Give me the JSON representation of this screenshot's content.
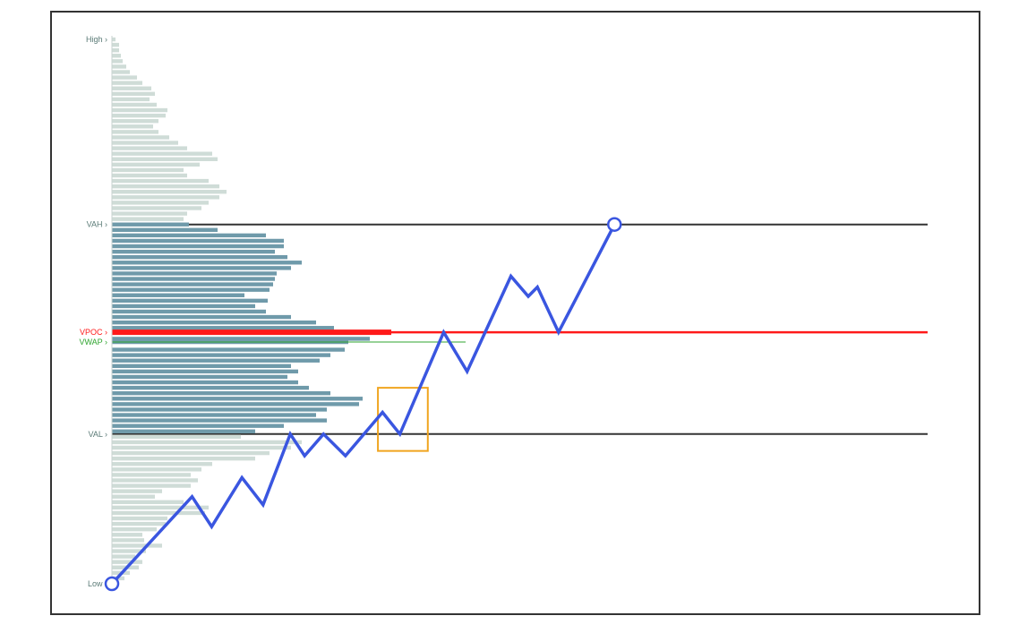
{
  "chart_data": {
    "type": "volume-profile-with-price-path",
    "colors": {
      "inside_value_bar": "#6f9aaa",
      "outside_value_bar": "#cfdcd7",
      "vpoc": "#ff1a1a",
      "vwap": "#2fa52f",
      "level_line": "#333333",
      "price_path": "#3a56e0",
      "highlight_box": "#f0a520",
      "level_label": "#5a7a76"
    },
    "levels": [
      {
        "key": "high",
        "label": "High",
        "value": 1.0
      },
      {
        "key": "vah",
        "label": "VAH",
        "value": 0.66
      },
      {
        "key": "vpoc",
        "label": "VPOC",
        "value": 0.462
      },
      {
        "key": "vwap",
        "label": "VWAP",
        "value": 0.444
      },
      {
        "key": "val",
        "label": "VAL",
        "value": 0.275
      },
      {
        "key": "low",
        "label": "Low",
        "value": 0.0
      }
    ],
    "value_area": [
      0.275,
      0.66
    ],
    "profile": [
      [
        1.0,
        0.01
      ],
      [
        0.99,
        0.02
      ],
      [
        0.98,
        0.02
      ],
      [
        0.97,
        0.025
      ],
      [
        0.96,
        0.03
      ],
      [
        0.95,
        0.04
      ],
      [
        0.94,
        0.05
      ],
      [
        0.93,
        0.07
      ],
      [
        0.92,
        0.085
      ],
      [
        0.91,
        0.11
      ],
      [
        0.9,
        0.12
      ],
      [
        0.89,
        0.105
      ],
      [
        0.88,
        0.125
      ],
      [
        0.87,
        0.155
      ],
      [
        0.86,
        0.15
      ],
      [
        0.85,
        0.13
      ],
      [
        0.84,
        0.115
      ],
      [
        0.83,
        0.13
      ],
      [
        0.82,
        0.16
      ],
      [
        0.81,
        0.185
      ],
      [
        0.8,
        0.21
      ],
      [
        0.79,
        0.28
      ],
      [
        0.78,
        0.295
      ],
      [
        0.77,
        0.245
      ],
      [
        0.76,
        0.2
      ],
      [
        0.75,
        0.21
      ],
      [
        0.74,
        0.27
      ],
      [
        0.73,
        0.3
      ],
      [
        0.72,
        0.32
      ],
      [
        0.71,
        0.3
      ],
      [
        0.7,
        0.27
      ],
      [
        0.69,
        0.25
      ],
      [
        0.68,
        0.21
      ],
      [
        0.67,
        0.2
      ],
      [
        0.66,
        0.215
      ],
      [
        0.65,
        0.295
      ],
      [
        0.64,
        0.43
      ],
      [
        0.63,
        0.48
      ],
      [
        0.62,
        0.48
      ],
      [
        0.61,
        0.455
      ],
      [
        0.6,
        0.49
      ],
      [
        0.59,
        0.53
      ],
      [
        0.58,
        0.5
      ],
      [
        0.57,
        0.46
      ],
      [
        0.56,
        0.455
      ],
      [
        0.55,
        0.45
      ],
      [
        0.54,
        0.44
      ],
      [
        0.53,
        0.37
      ],
      [
        0.52,
        0.435
      ],
      [
        0.51,
        0.4
      ],
      [
        0.5,
        0.43
      ],
      [
        0.49,
        0.5
      ],
      [
        0.48,
        0.57
      ],
      [
        0.47,
        0.62
      ],
      [
        0.462,
        0.78
      ],
      [
        0.45,
        0.72
      ],
      [
        0.444,
        0.66
      ],
      [
        0.43,
        0.65
      ],
      [
        0.42,
        0.61
      ],
      [
        0.41,
        0.58
      ],
      [
        0.4,
        0.5
      ],
      [
        0.39,
        0.52
      ],
      [
        0.38,
        0.49
      ],
      [
        0.37,
        0.52
      ],
      [
        0.36,
        0.55
      ],
      [
        0.35,
        0.61
      ],
      [
        0.34,
        0.7
      ],
      [
        0.33,
        0.69
      ],
      [
        0.32,
        0.6
      ],
      [
        0.31,
        0.57
      ],
      [
        0.3,
        0.6
      ],
      [
        0.29,
        0.48
      ],
      [
        0.28,
        0.4
      ],
      [
        0.27,
        0.36
      ],
      [
        0.26,
        0.53
      ],
      [
        0.25,
        0.5
      ],
      [
        0.24,
        0.44
      ],
      [
        0.23,
        0.4
      ],
      [
        0.22,
        0.28
      ],
      [
        0.21,
        0.25
      ],
      [
        0.2,
        0.22
      ],
      [
        0.19,
        0.24
      ],
      [
        0.18,
        0.22
      ],
      [
        0.17,
        0.14
      ],
      [
        0.16,
        0.12
      ],
      [
        0.15,
        0.2
      ],
      [
        0.14,
        0.27
      ],
      [
        0.13,
        0.26
      ],
      [
        0.12,
        0.155
      ],
      [
        0.11,
        0.15
      ],
      [
        0.1,
        0.125
      ],
      [
        0.09,
        0.085
      ],
      [
        0.08,
        0.09
      ],
      [
        0.07,
        0.14
      ],
      [
        0.06,
        0.095
      ],
      [
        0.05,
        0.065
      ],
      [
        0.04,
        0.085
      ],
      [
        0.03,
        0.075
      ],
      [
        0.02,
        0.05
      ],
      [
        0.01,
        0.035
      ],
      [
        0.0,
        0.01
      ]
    ],
    "price_path": [
      [
        0.0,
        0.0
      ],
      [
        0.106,
        0.16
      ],
      [
        0.132,
        0.105
      ],
      [
        0.172,
        0.195
      ],
      [
        0.2,
        0.145
      ],
      [
        0.236,
        0.275
      ],
      [
        0.255,
        0.235
      ],
      [
        0.28,
        0.275
      ],
      [
        0.309,
        0.235
      ],
      [
        0.358,
        0.315
      ],
      [
        0.381,
        0.275
      ],
      [
        0.439,
        0.462
      ],
      [
        0.47,
        0.39
      ],
      [
        0.528,
        0.565
      ],
      [
        0.551,
        0.528
      ],
      [
        0.563,
        0.545
      ],
      [
        0.591,
        0.462
      ],
      [
        0.665,
        0.66
      ]
    ],
    "highlight_box": [
      0.352,
      0.418,
      0.244,
      0.36
    ]
  }
}
